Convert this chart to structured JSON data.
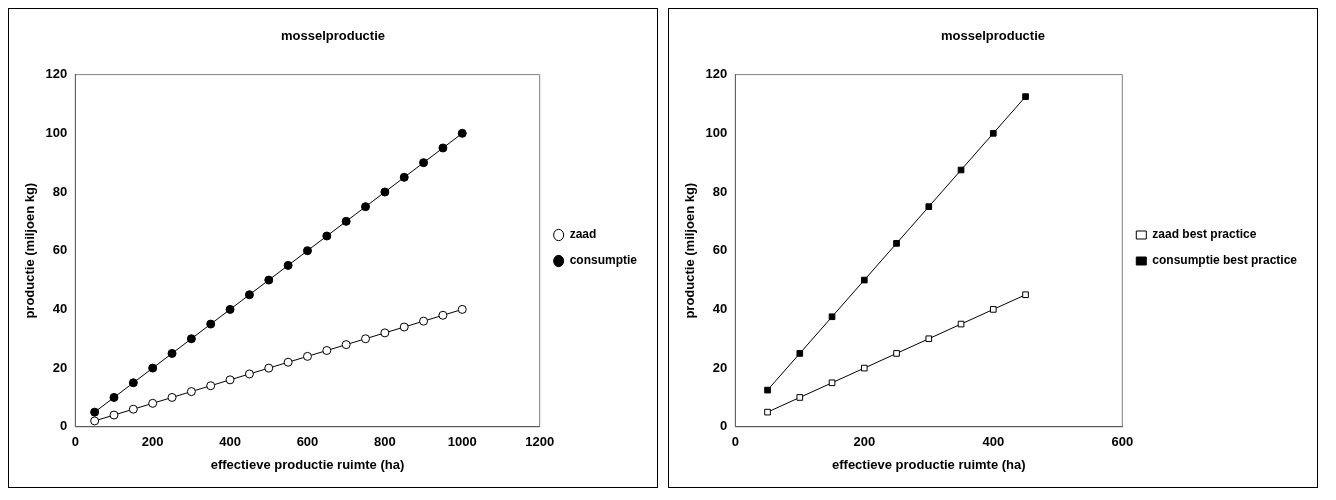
{
  "chart_data": [
    {
      "type": "line",
      "title": "mosselproductie",
      "xlabel": "effectieve productie ruimte (ha)",
      "ylabel": "productie (miljoen kg)",
      "x": [
        50,
        100,
        150,
        200,
        250,
        300,
        350,
        400,
        450,
        500,
        550,
        600,
        650,
        700,
        750,
        800,
        850,
        900,
        950,
        1000
      ],
      "xlim": [
        0,
        1200
      ],
      "xticks": [
        0,
        200,
        400,
        600,
        800,
        1000,
        1200
      ],
      "ylim": [
        0,
        120
      ],
      "yticks": [
        0,
        20,
        40,
        60,
        80,
        100,
        120
      ],
      "grid": false,
      "legend": "right",
      "series": [
        {
          "name": "zaad",
          "color": "#000000",
          "marker": "circle",
          "values": [
            2,
            4,
            6,
            8,
            10,
            12,
            14,
            16,
            18,
            20,
            22,
            24,
            26,
            28,
            30,
            32,
            34,
            36,
            38,
            40
          ]
        },
        {
          "name": "consumptie",
          "color": "#000000",
          "marker": "circle",
          "values": [
            5,
            10,
            15,
            20,
            25,
            30,
            35,
            40,
            45,
            50,
            55,
            60,
            65,
            70,
            75,
            80,
            85,
            90,
            95,
            100
          ]
        }
      ]
    },
    {
      "type": "line",
      "title": "mosselproductie",
      "xlabel": "effectieve productie ruimte (ha)",
      "ylabel": "productie (miljoen kg)",
      "x": [
        50,
        100,
        150,
        200,
        250,
        300,
        350,
        400,
        450
      ],
      "xlim": [
        0,
        600
      ],
      "xticks": [
        0,
        200,
        400,
        600
      ],
      "ylim": [
        0,
        120
      ],
      "yticks": [
        0,
        20,
        40,
        60,
        80,
        100,
        120
      ],
      "grid": false,
      "legend": "right",
      "series": [
        {
          "name": "zaad best practice",
          "color": "#000000",
          "marker": "square",
          "values": [
            5,
            10,
            15,
            20,
            25,
            30,
            35,
            40,
            45
          ]
        },
        {
          "name": "consumptie best practice",
          "color": "#000000",
          "marker": "square",
          "values": [
            12.5,
            25,
            37.5,
            50,
            62.5,
            75,
            87.5,
            100,
            112.5
          ]
        }
      ]
    }
  ]
}
